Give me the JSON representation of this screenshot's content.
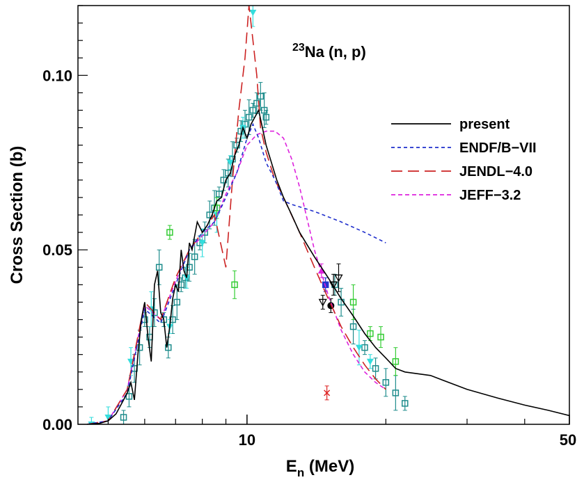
{
  "chart_data": {
    "type": "line",
    "title": "",
    "annotation": {
      "superscript": "23",
      "text": "Na (n, p)"
    },
    "xlabel": {
      "main": "E",
      "sub": "n",
      "unit": " (MeV)"
    },
    "ylabel": "Cross Section (b)",
    "xscale": "log",
    "xlim": [
      4.3,
      50
    ],
    "ylim": [
      0,
      0.12
    ],
    "x_tick_labels": [
      "10",
      "50"
    ],
    "y_tick_labels": [
      "0.00",
      "0.05",
      "0.10"
    ],
    "legend_position": "right",
    "series": [
      {
        "name": "present",
        "color": "#000000",
        "dash": "solid",
        "x": [
          4.5,
          4.8,
          5.0,
          5.2,
          5.35,
          5.5,
          5.6,
          5.7,
          5.8,
          5.9,
          6.0,
          6.1,
          6.2,
          6.3,
          6.4,
          6.5,
          6.6,
          6.7,
          6.8,
          6.9,
          7.0,
          7.1,
          7.2,
          7.3,
          7.4,
          7.5,
          7.6,
          7.8,
          8.0,
          8.2,
          8.4,
          8.6,
          8.8,
          9.0,
          9.2,
          9.4,
          9.6,
          9.8,
          10.0,
          10.2,
          10.4,
          10.6,
          10.8,
          11.0,
          11.3,
          11.6,
          12.0,
          12.5,
          13.0,
          14.0,
          15.0,
          16.0,
          17.0,
          18.0,
          19.0,
          20.0,
          21.0,
          22.0,
          25.0,
          30.0,
          35.0,
          40.0,
          45.0,
          50.0
        ],
        "values": [
          0.0,
          0.0003,
          0.001,
          0.003,
          0.006,
          0.009,
          0.012,
          0.007,
          0.02,
          0.03,
          0.035,
          0.025,
          0.018,
          0.04,
          0.044,
          0.032,
          0.03,
          0.022,
          0.028,
          0.036,
          0.04,
          0.038,
          0.05,
          0.044,
          0.042,
          0.052,
          0.05,
          0.058,
          0.055,
          0.057,
          0.06,
          0.064,
          0.065,
          0.07,
          0.072,
          0.077,
          0.08,
          0.085,
          0.082,
          0.086,
          0.088,
          0.09,
          0.085,
          0.08,
          0.075,
          0.07,
          0.065,
          0.06,
          0.055,
          0.048,
          0.042,
          0.036,
          0.031,
          0.026,
          0.022,
          0.019,
          0.016,
          0.015,
          0.014,
          0.01,
          0.0075,
          0.0055,
          0.004,
          0.0025
        ]
      },
      {
        "name": "ENDF/B−VII",
        "color": "#1f2ecc",
        "dash": "5,4",
        "x": [
          4.5,
          5.0,
          5.5,
          6.0,
          6.5,
          7.0,
          7.5,
          8.0,
          8.5,
          9.0,
          9.5,
          10.0,
          10.3,
          10.6,
          11.0,
          11.5,
          12.0,
          12.5,
          14.0,
          16.0,
          18.0,
          20.0
        ],
        "values": [
          0.0,
          0.001,
          0.009,
          0.033,
          0.029,
          0.04,
          0.05,
          0.055,
          0.058,
          0.065,
          0.072,
          0.082,
          0.086,
          0.082,
          0.075,
          0.07,
          0.064,
          0.063,
          0.061,
          0.058,
          0.055,
          0.052
        ]
      },
      {
        "name": "JENDL−4.0",
        "color": "#cc2222",
        "dash": "16,8",
        "x": [
          4.5,
          5.0,
          5.5,
          6.0,
          6.5,
          7.0,
          7.5,
          8.0,
          8.5,
          9.0,
          9.3,
          9.6,
          9.9,
          10.1,
          10.3,
          10.5,
          10.7,
          11.0,
          11.5,
          12.0,
          13.0,
          14.0,
          15.0,
          16.0,
          17.0,
          18.0,
          19.0,
          20.0
        ],
        "values": [
          0.0,
          0.001,
          0.01,
          0.035,
          0.03,
          0.042,
          0.05,
          0.055,
          0.06,
          0.045,
          0.07,
          0.09,
          0.105,
          0.12,
          0.11,
          0.1,
          0.085,
          0.078,
          0.07,
          0.065,
          0.055,
          0.045,
          0.036,
          0.028,
          0.022,
          0.017,
          0.013,
          0.01
        ]
      },
      {
        "name": "JEFF−3.2",
        "color": "#dd22dd",
        "dash": "6,4",
        "x": [
          4.5,
          5.0,
          5.5,
          6.0,
          6.5,
          7.0,
          7.5,
          8.0,
          8.5,
          9.0,
          9.5,
          10.0,
          10.5,
          11.0,
          11.5,
          12.0,
          12.5,
          13.0,
          14.0,
          15.0,
          16.0,
          17.0,
          18.0,
          19.0,
          20.0
        ],
        "values": [
          0.0,
          0.001,
          0.01,
          0.034,
          0.03,
          0.041,
          0.05,
          0.054,
          0.058,
          0.066,
          0.072,
          0.08,
          0.083,
          0.084,
          0.084,
          0.082,
          0.076,
          0.068,
          0.05,
          0.037,
          0.027,
          0.02,
          0.015,
          0.012,
          0.01
        ]
      }
    ],
    "experimental_points": [
      {
        "marker": "square-teal",
        "color": "#1e8c8c",
        "x": [
          5.4,
          5.55,
          5.7,
          5.85,
          6.0,
          6.15,
          6.3,
          6.45,
          6.6,
          6.75,
          6.9,
          7.05,
          7.2,
          7.35,
          7.5,
          7.7,
          7.9,
          8.1,
          8.3,
          8.5,
          8.7,
          8.9,
          9.1,
          9.3,
          9.5,
          9.7,
          9.9,
          10.1,
          10.3,
          10.5,
          10.7,
          10.9,
          11.0,
          15.5,
          16.0,
          17.0,
          18.0,
          19.0,
          20.0,
          21.0,
          22.0
        ],
        "values": [
          0.002,
          0.008,
          0.016,
          0.022,
          0.03,
          0.025,
          0.032,
          0.045,
          0.03,
          0.022,
          0.03,
          0.035,
          0.04,
          0.042,
          0.045,
          0.048,
          0.052,
          0.055,
          0.06,
          0.062,
          0.066,
          0.07,
          0.072,
          0.076,
          0.08,
          0.084,
          0.086,
          0.088,
          0.09,
          0.092,
          0.094,
          0.09,
          0.088,
          0.04,
          0.035,
          0.028,
          0.022,
          0.016,
          0.012,
          0.009,
          0.006
        ]
      },
      {
        "marker": "triangle-cyan",
        "color": "#33dddd",
        "x": [
          4.6,
          5.0,
          5.6,
          6.2,
          6.8,
          7.4,
          8.0,
          8.6,
          9.2,
          9.8,
          10.3,
          17.5,
          18.5
        ],
        "values": [
          0.0,
          0.002,
          0.018,
          0.033,
          0.028,
          0.042,
          0.052,
          0.06,
          0.075,
          0.085,
          0.118,
          0.022,
          0.018
        ]
      },
      {
        "marker": "square-green",
        "color": "#33cc33",
        "x": [
          6.8,
          8.6,
          9.4,
          17.0,
          18.5,
          19.5,
          21.0
        ],
        "values": [
          0.055,
          0.062,
          0.04,
          0.035,
          0.026,
          0.025,
          0.018
        ]
      },
      {
        "marker": "triangle-down-black",
        "color": "#000000",
        "x": [
          14.6,
          15.4,
          15.8
        ],
        "values": [
          0.035,
          0.04,
          0.042
        ]
      },
      {
        "marker": "circle-black",
        "color": "#000000",
        "x": [
          15.2
        ],
        "values": [
          0.034
        ]
      },
      {
        "marker": "x-red",
        "color": "#dd2222",
        "x": [
          14.9
        ],
        "values": [
          0.009
        ]
      },
      {
        "marker": "triangle-magenta",
        "color": "#dd22dd",
        "x": [
          14.5
        ],
        "values": [
          0.044
        ]
      },
      {
        "marker": "square-blue",
        "color": "#2233cc",
        "x": [
          14.8
        ],
        "values": [
          0.04
        ]
      }
    ]
  }
}
